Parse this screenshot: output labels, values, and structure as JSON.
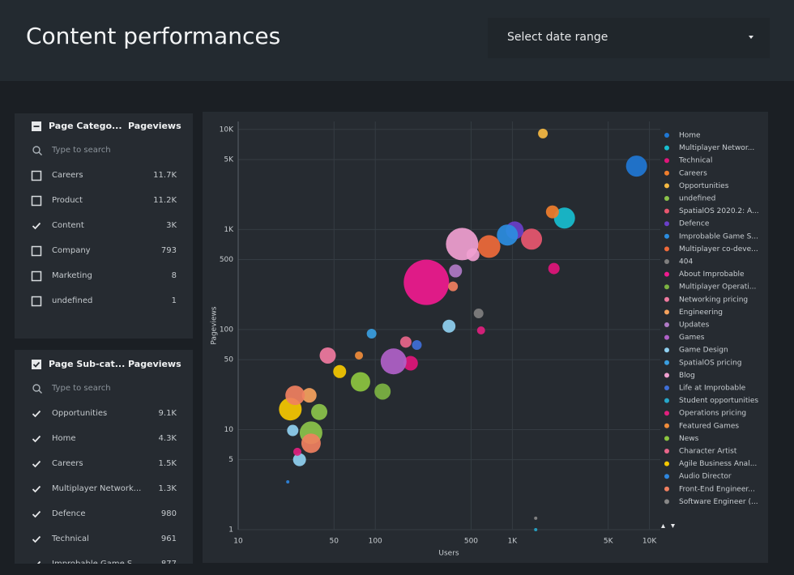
{
  "header": {
    "title": "Content performances",
    "date_select": "Select date range"
  },
  "filters": [
    {
      "title": "Page Catego...",
      "metric": "Pageviews",
      "search": "Type to search",
      "header_state": "partial",
      "rows": [
        {
          "label": "Careers",
          "value": "11.7K",
          "checked": false
        },
        {
          "label": "Product",
          "value": "11.2K",
          "checked": false
        },
        {
          "label": "Content",
          "value": "3K",
          "checked": true
        },
        {
          "label": "Company",
          "value": "793",
          "checked": false
        },
        {
          "label": "Marketing",
          "value": "8",
          "checked": false
        },
        {
          "label": "undefined",
          "value": "1",
          "checked": false
        }
      ]
    },
    {
      "title": "Page Sub-cat...",
      "metric": "Pageviews",
      "search": "Type to search",
      "header_state": "checked",
      "rows": [
        {
          "label": "Opportunities",
          "value": "9.1K",
          "checked": true
        },
        {
          "label": "Home",
          "value": "4.3K",
          "checked": true
        },
        {
          "label": "Careers",
          "value": "1.5K",
          "checked": true
        },
        {
          "label": "Multiplayer Network...",
          "value": "1.3K",
          "checked": true
        },
        {
          "label": "Defence",
          "value": "980",
          "checked": true
        },
        {
          "label": "Technical",
          "value": "961",
          "checked": true
        },
        {
          "label": "Improbable Game S...",
          "value": "877",
          "checked": true
        }
      ]
    }
  ],
  "chart_data": {
    "type": "scatter",
    "xlabel": "Users",
    "ylabel": "Pageviews",
    "xlog": true,
    "ylog": true,
    "grid": true,
    "xlim": [
      10,
      12000
    ],
    "ylim": [
      1,
      12000
    ],
    "xticks": [
      10,
      50,
      100,
      500,
      {
        "value": 1000,
        "label": "1K"
      },
      {
        "value": 5000,
        "label": "5K"
      },
      {
        "value": 10000,
        "label": "10K"
      }
    ],
    "yticks": [
      1,
      5,
      10,
      50,
      100,
      500,
      {
        "value": 1000,
        "label": "1K"
      },
      {
        "value": 5000,
        "label": "5K"
      },
      {
        "value": 10000,
        "label": "10K"
      }
    ],
    "series": [
      {
        "name": "Home",
        "color": "#1f77d4",
        "x": [
          8050
        ],
        "values": [
          4300
        ],
        "sizes": [
          13
        ]
      },
      {
        "name": "Multiplayer Networ...",
        "color": "#17becf",
        "x": [
          2400
        ],
        "values": [
          1300
        ],
        "sizes": [
          13
        ]
      },
      {
        "name": "Technical",
        "color": "#e0157a",
        "x": [
          2010,
          181
        ],
        "values": [
          407,
          46
        ],
        "sizes": [
          7,
          9
        ]
      },
      {
        "name": "Careers",
        "color": "#f07e2c",
        "x": [
          1960
        ],
        "values": [
          1500
        ],
        "sizes": [
          8
        ]
      },
      {
        "name": "Opportunities",
        "color": "#f5b942",
        "x": [
          1670
        ],
        "values": [
          9100
        ],
        "sizes": [
          6
        ]
      },
      {
        "name": "undefined",
        "color": "#8bc34a",
        "x": [
          34,
          39
        ],
        "values": [
          9.3,
          15
        ],
        "sizes": [
          14,
          10
        ]
      },
      {
        "name": "SpatialOS 2020.2: A...",
        "color": "#e8576f",
        "x": [
          1380
        ],
        "values": [
          800
        ],
        "sizes": [
          13
        ]
      },
      {
        "name": "Defence",
        "color": "#6a3fc9",
        "x": [
          1040
        ],
        "values": [
          980
        ],
        "sizes": [
          11
        ]
      },
      {
        "name": "Improbable Game S...",
        "color": "#2b8de0",
        "x": [
          920
        ],
        "values": [
          880
        ],
        "sizes": [
          13
        ]
      },
      {
        "name": "Multiplayer co-deve...",
        "color": "#ef6a3a",
        "x": [
          676
        ],
        "values": [
          675
        ],
        "sizes": [
          14
        ]
      },
      {
        "name": "404",
        "color": "#7f7f7f",
        "x": [
          567
        ],
        "values": [
          145
        ],
        "sizes": [
          6
        ]
      },
      {
        "name": "About Improbable",
        "color": "#ef1a8e",
        "x": [
          236
        ],
        "values": [
          296
        ],
        "sizes": [
          28
        ]
      },
      {
        "name": "Multiplayer Operati...",
        "color": "#7cb342",
        "x": [
          113
        ],
        "values": [
          24
        ],
        "sizes": [
          10
        ]
      },
      {
        "name": "Networking pricing",
        "color": "#f07aa0",
        "x": [
          45
        ],
        "values": [
          55
        ],
        "sizes": [
          10
        ]
      },
      {
        "name": "Engineering",
        "color": "#f5a25d",
        "x": [
          33
        ],
        "values": [
          22
        ],
        "sizes": [
          9
        ]
      },
      {
        "name": "Updates",
        "color": "#b07ac5",
        "x": [
          385
        ],
        "values": [
          385
        ],
        "sizes": [
          8
        ]
      },
      {
        "name": "Games",
        "color": "#b061c8",
        "x": [
          136
        ],
        "values": [
          48
        ],
        "sizes": [
          16
        ]
      },
      {
        "name": "Game Design",
        "color": "#8fd0f0",
        "x": [
          345,
          25,
          28
        ],
        "values": [
          108,
          9.8,
          5
        ],
        "sizes": [
          8,
          7,
          8
        ]
      },
      {
        "name": "SpatialOS pricing",
        "color": "#3a9ee0",
        "x": [
          94
        ],
        "values": [
          91
        ],
        "sizes": [
          6
        ]
      },
      {
        "name": "Blog",
        "color": "#f0a0d0",
        "x": [
          430,
          516
        ],
        "values": [
          714,
          560
        ],
        "sizes": [
          20,
          8
        ]
      },
      {
        "name": "Life at Improbable",
        "color": "#3f6fd8",
        "x": [
          201
        ],
        "values": [
          70
        ],
        "sizes": [
          6
        ]
      },
      {
        "name": "Student opportunities",
        "color": "#26a6c9",
        "x": [
          1480
        ],
        "values": [
          1
        ],
        "sizes": [
          2
        ]
      },
      {
        "name": "Operations pricing",
        "color": "#e0207e",
        "x": [
          591,
          27
        ],
        "values": [
          98,
          6
        ],
        "sizes": [
          5,
          5
        ]
      },
      {
        "name": "Featured Games",
        "color": "#f08c3a",
        "x": [
          76
        ],
        "values": [
          55
        ],
        "sizes": [
          5
        ]
      },
      {
        "name": "News",
        "color": "#8cc63f",
        "x": [
          78
        ],
        "values": [
          30
        ],
        "sizes": [
          12
        ]
      },
      {
        "name": "Character Artist",
        "color": "#e8668a",
        "x": [
          167
        ],
        "values": [
          75
        ],
        "sizes": [
          7
        ]
      },
      {
        "name": "Agile Business Anal...",
        "color": "#f5c800",
        "x": [
          24,
          55
        ],
        "values": [
          16,
          38
        ],
        "sizes": [
          14,
          8
        ]
      },
      {
        "name": "Audio Director",
        "color": "#2e86de",
        "x": [
          23
        ],
        "values": [
          3
        ],
        "sizes": [
          2
        ]
      },
      {
        "name": "Front-End Engineer...",
        "color": "#f08060",
        "x": [
          369,
          26,
          34
        ],
        "values": [
          270,
          22,
          7.3
        ],
        "sizes": [
          6,
          12,
          12
        ]
      },
      {
        "name": "Software Engineer (...",
        "color": "#888888",
        "x": [
          1480
        ],
        "values": [
          1.3
        ],
        "sizes": [
          2
        ]
      }
    ]
  }
}
